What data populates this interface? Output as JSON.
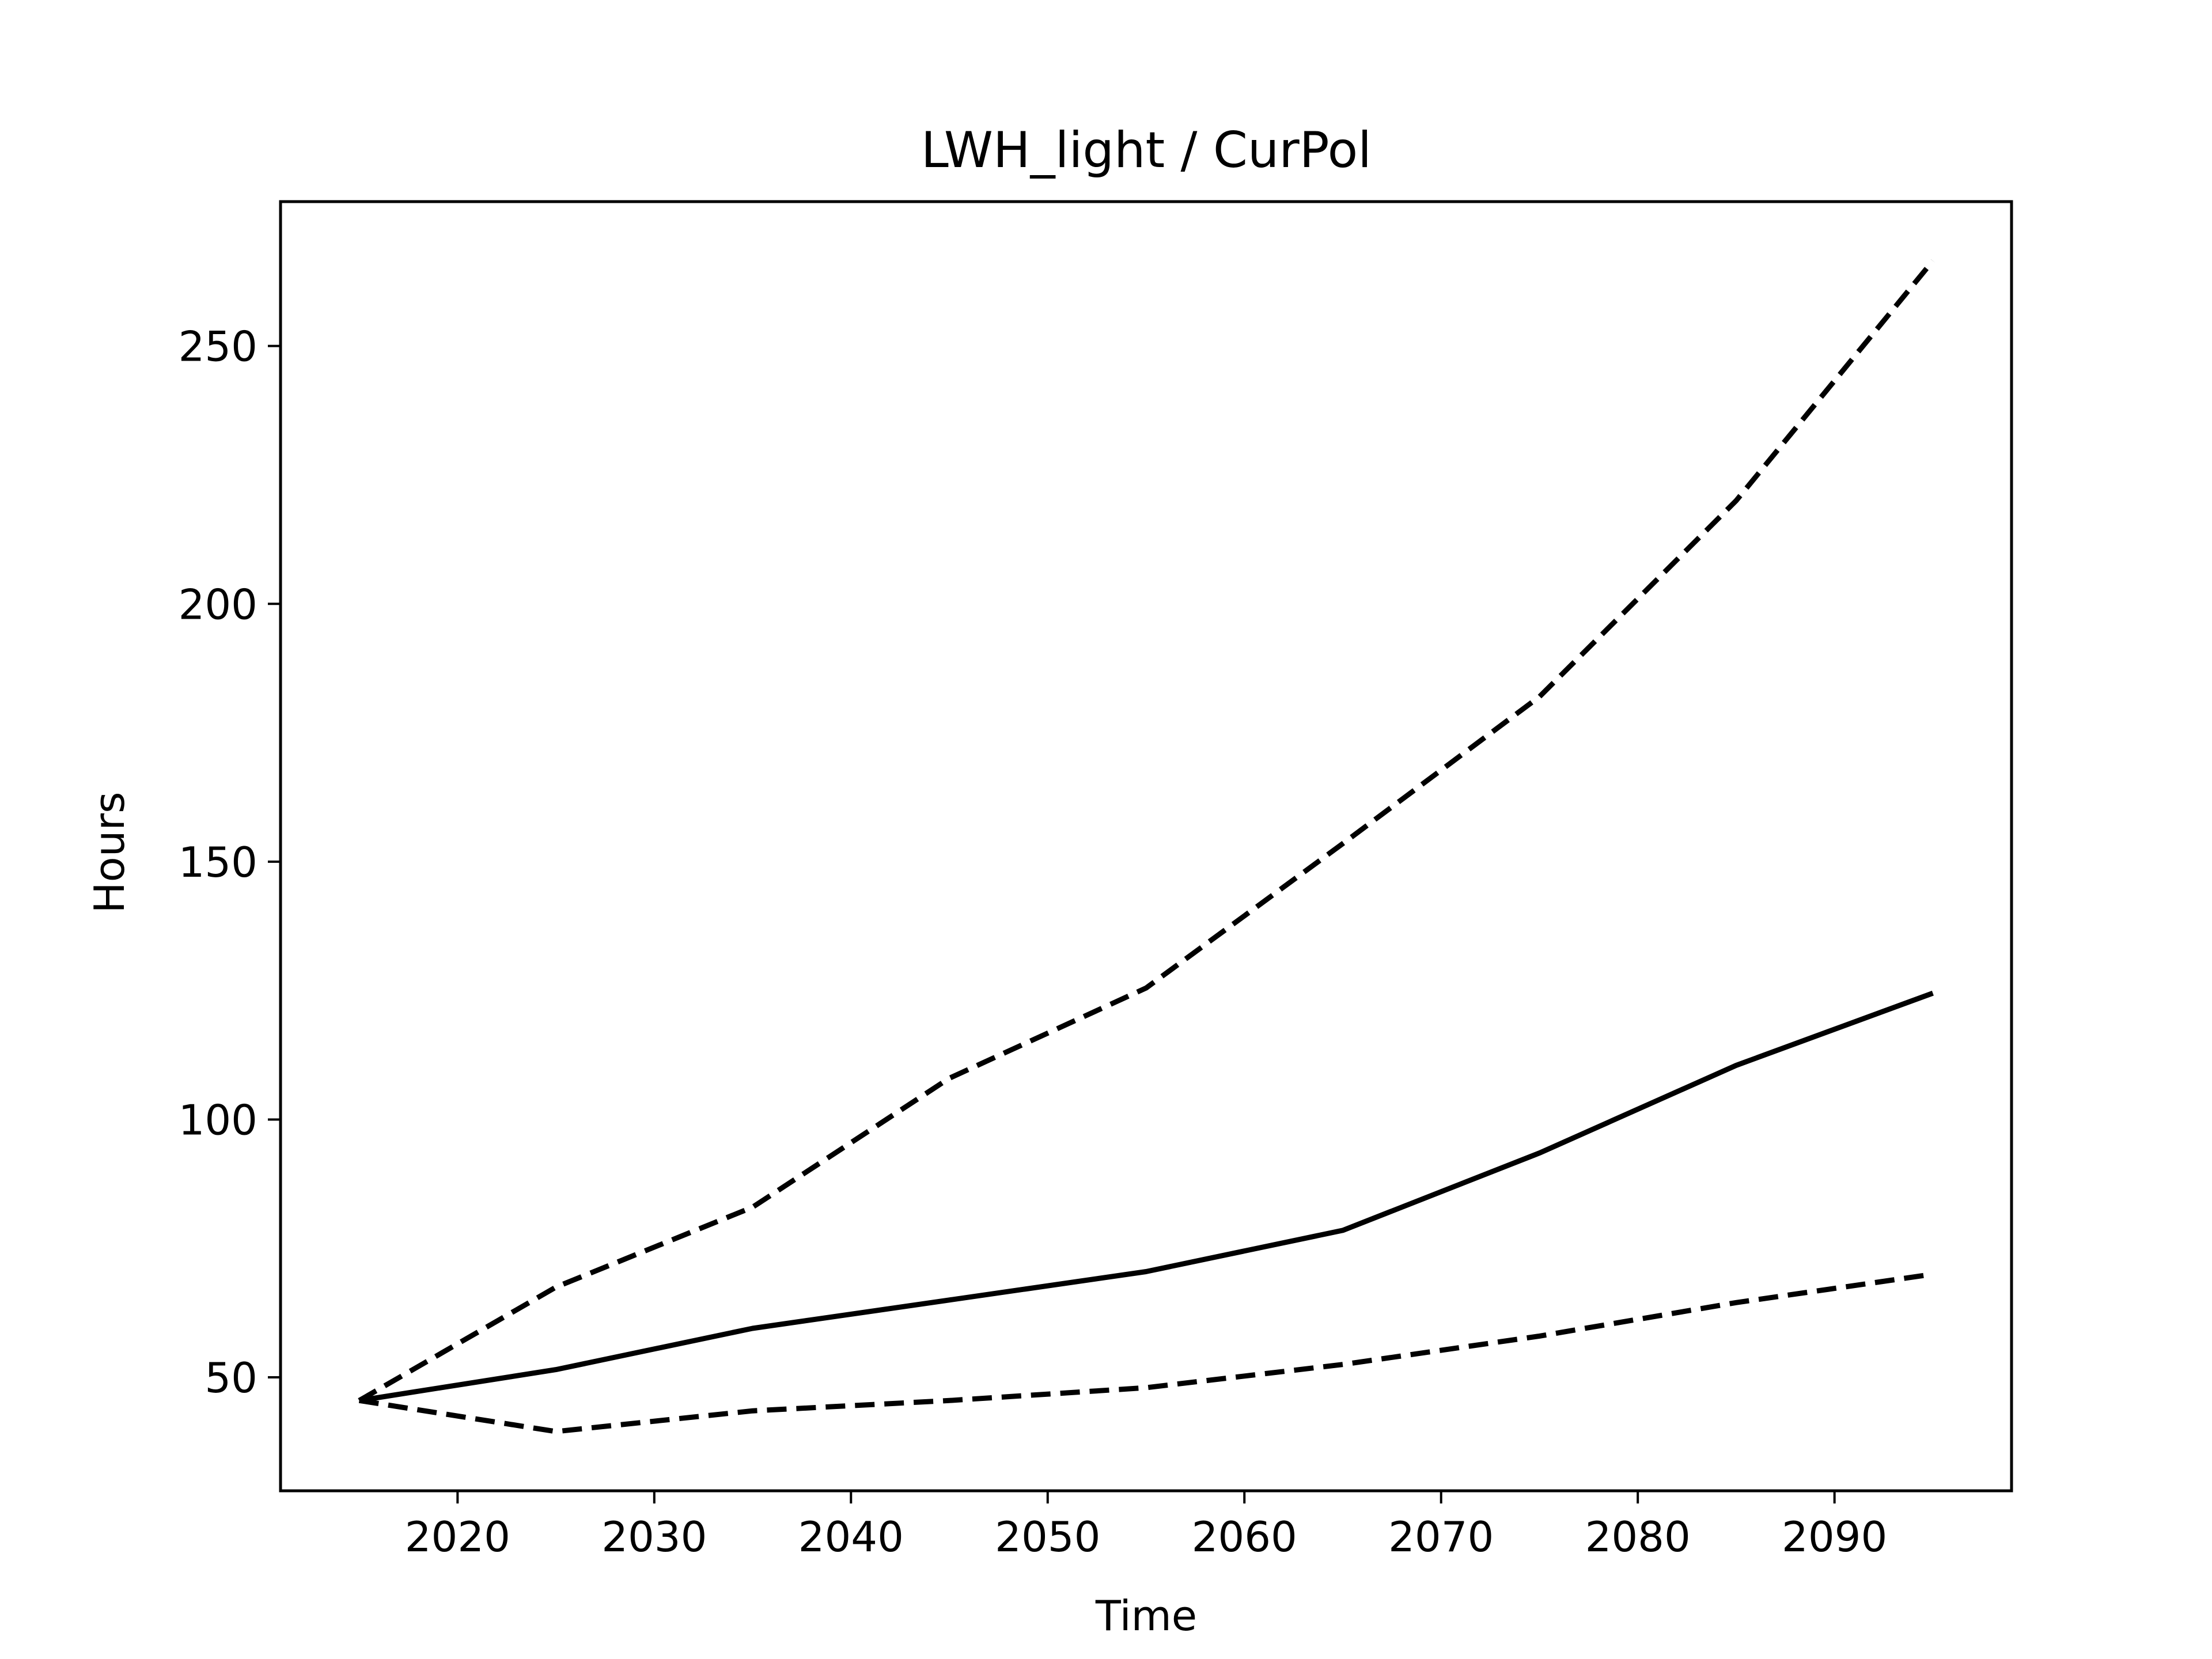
{
  "chart_data": {
    "type": "line",
    "title": "LWH_light / CurPol",
    "xlabel": "Time",
    "ylabel": "Hours",
    "xlim": [
      2011,
      2099
    ],
    "ylim": [
      28,
      278
    ],
    "xticks": [
      2020,
      2030,
      2040,
      2050,
      2060,
      2070,
      2080,
      2090
    ],
    "yticks": [
      50,
      100,
      150,
      200,
      250
    ],
    "grid": false,
    "x": [
      2015,
      2025,
      2035,
      2045,
      2055,
      2065,
      2075,
      2085,
      2095
    ],
    "series": [
      {
        "style": "solid",
        "color": "#000000",
        "values": [
          45.5,
          51.5,
          59.5,
          65,
          70.5,
          78.5,
          93.5,
          110.5,
          124.5
        ]
      },
      {
        "style": "dashed",
        "color": "#000000",
        "values": [
          45.5,
          67.5,
          83,
          108,
          125.5,
          153.5,
          182,
          220,
          266.5
        ]
      },
      {
        "style": "dashed",
        "color": "#000000",
        "values": [
          45.5,
          39.5,
          43.5,
          45.5,
          48,
          52.5,
          58,
          64.5,
          70
        ]
      }
    ]
  }
}
